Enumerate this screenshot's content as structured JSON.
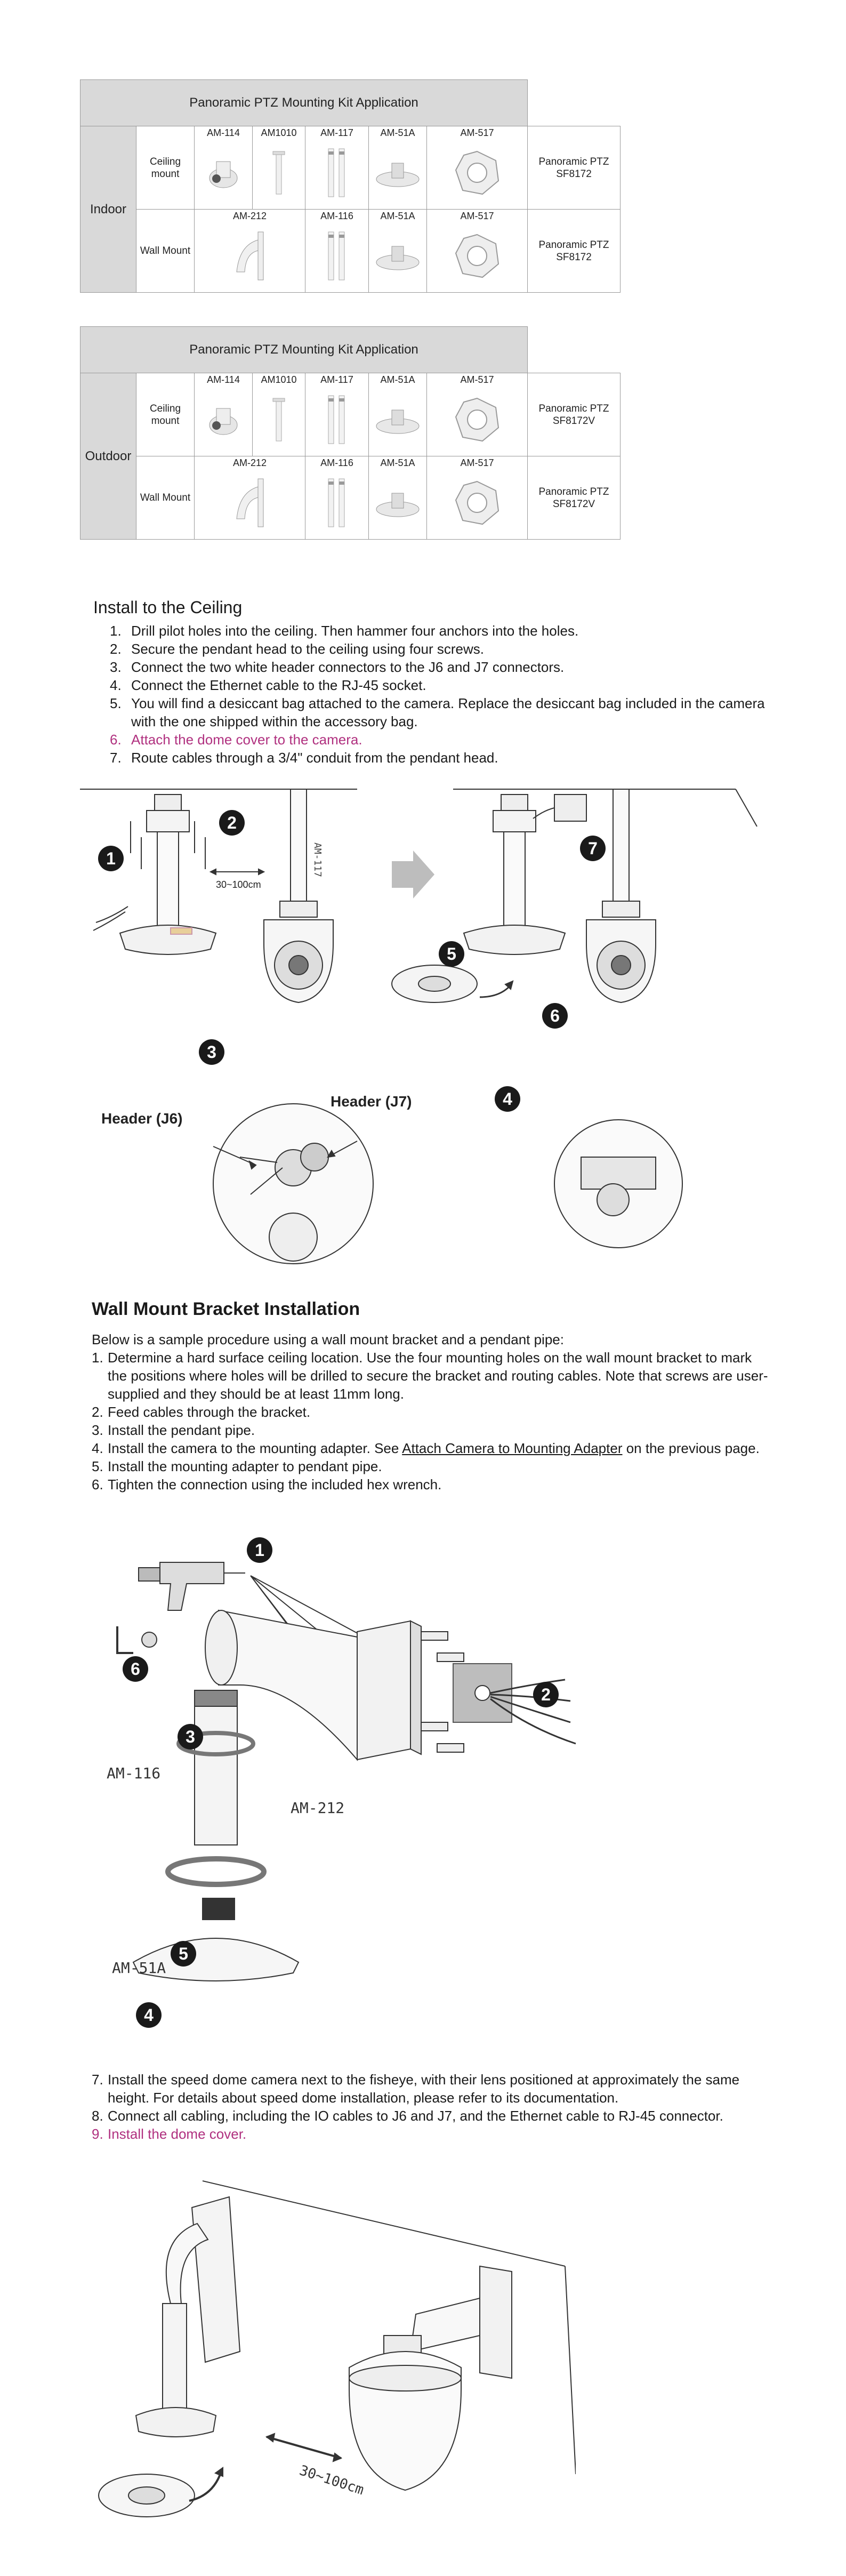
{
  "tables": [
    {
      "title": "Panoramic PTZ Mounting Kit Application",
      "location": "Indoor",
      "rows": [
        {
          "mount": "Ceiling mount",
          "parts": [
            "AM-114",
            "AM1010",
            "AM-117",
            "AM-51A",
            "AM-517"
          ],
          "product": "Panoramic PTZ SF8172"
        },
        {
          "mount": "Wall Mount",
          "parts": [
            "AM-212",
            "AM-116",
            "AM-51A",
            "AM-517"
          ],
          "product": "Panoramic PTZ SF8172"
        }
      ]
    },
    {
      "title": "Panoramic PTZ Mounting Kit Application",
      "location": "Outdoor",
      "rows": [
        {
          "mount": "Ceiling mount",
          "parts": [
            "AM-114",
            "AM1010",
            "AM-117",
            "AM-51A",
            "AM-517"
          ],
          "product": "Panoramic PTZ SF8172V"
        },
        {
          "mount": "Wall Mount",
          "parts": [
            "AM-212",
            "AM-116",
            "AM-51A",
            "AM-517"
          ],
          "product": "Panoramic PTZ SF8172V"
        }
      ]
    }
  ],
  "ceiling": {
    "title": "Install to the Ceiling",
    "steps": [
      "Drill pilot holes into the ceiling. Then hammer four anchors into the holes.",
      "Secure the pendant head to the ceiling using four screws.",
      "Connect the two white header connectors to the J6 and J7 connectors.",
      "Connect the Ethernet cable to the RJ-45 socket.",
      "You will find a desiccant bag attached to the camera. Replace the desiccant bag included in the camera with the one shipped within the accessory bag.",
      "Attach the dome cover to the camera.",
      "Route cables through a 3/4\" conduit from the pendant head."
    ],
    "diagram": {
      "badges": [
        "1",
        "2",
        "3",
        "4",
        "5",
        "6",
        "7"
      ],
      "distance": "30~100cm",
      "pipe_label": "AM-117",
      "header_j6": "Header (J6)",
      "header_j7": "Header (J7)"
    }
  },
  "wall": {
    "title": "Wall Mount Bracket Installation",
    "intro": "Below is a sample procedure using a wall mount bracket and a pendant pipe:",
    "steps": [
      {
        "text": "Determine a hard surface ceiling location. Use the four mounting holes on the wall mount bracket to mark the positions where holes will be drilled to secure the bracket and routing cables. Note that screws are user-supplied and they should be at least 11mm long."
      },
      {
        "text": "Feed cables through the bracket."
      },
      {
        "text": "Install the pendant pipe."
      },
      {
        "pre": "Install the camera to the mounting adapter. See ",
        "link": "Attach Camera to Mounting Adapter",
        "post": " on the previous page."
      },
      {
        "text": "Install the mounting adapter to pendant pipe."
      },
      {
        "text": "Tighten the connection using the included hex wrench."
      }
    ],
    "diagram": {
      "badges": [
        "1",
        "2",
        "3",
        "4",
        "5",
        "6"
      ],
      "label_am116": "AM-116",
      "label_am212": "AM-212",
      "label_am51a": "AM-51A"
    },
    "steps2": [
      "Install the speed dome camera next to the fisheye, with their lens positioned at approximately the same height. For details about speed dome installation, please refer to its documentation.",
      "Connect all cabling, including the IO cables to J6 and J7, and the Ethernet cable to RJ-45 connector.",
      "Install the dome cover."
    ],
    "distance": "30~100cm"
  },
  "colors": {
    "accent": "#b0307f",
    "header_gray": "#d9d9d9"
  }
}
